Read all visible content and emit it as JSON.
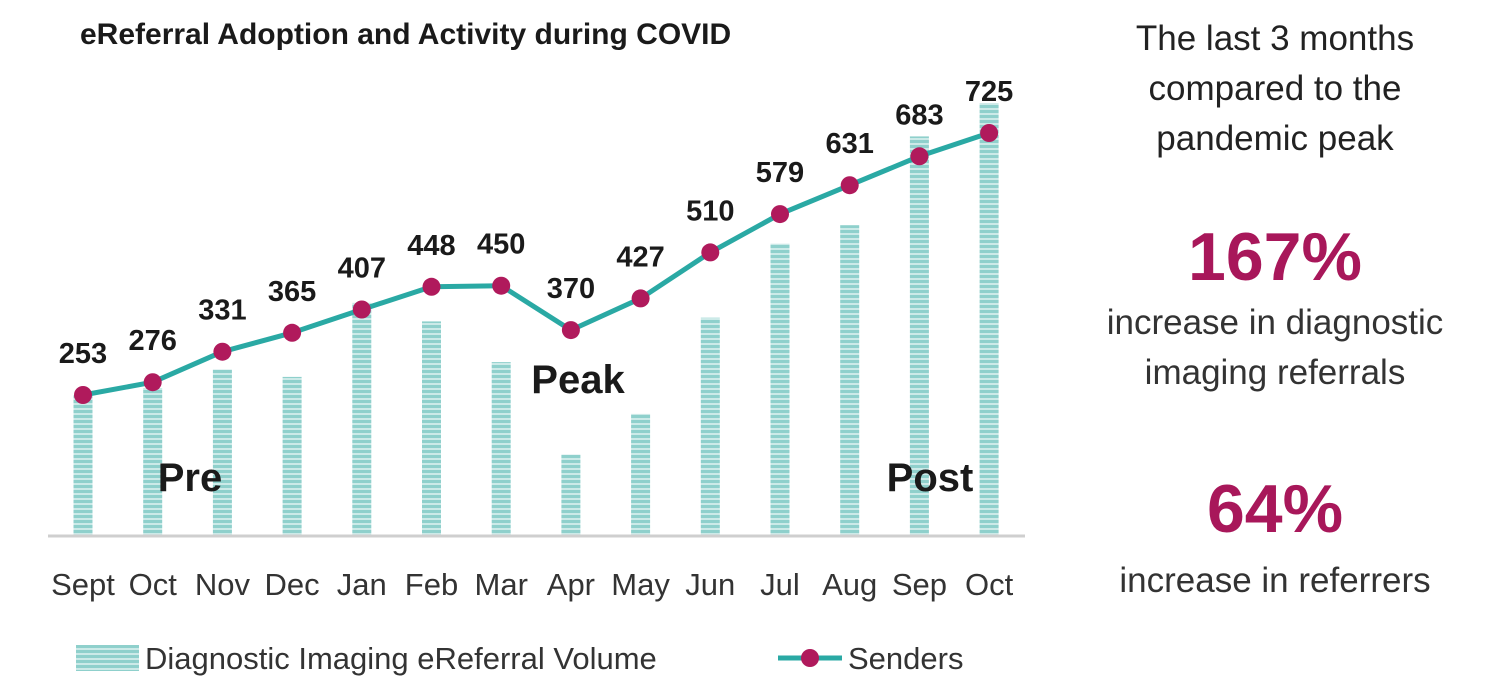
{
  "colors": {
    "bar_fill": "#8fd0cc",
    "bar_stripe": "#ffffff",
    "line": "#2aa9a4",
    "marker": "#b01a5c",
    "highlight": "#a8175a",
    "axis": "#cfcfcf",
    "text": "#1a1a1a"
  },
  "chart_data": {
    "type": "bar",
    "title": "eReferral Adoption and Activity during COVID",
    "categories": [
      "Sept",
      "Oct",
      "Nov",
      "Dec",
      "Jan",
      "Feb",
      "Mar",
      "Apr",
      "May",
      "Jun",
      "Jul",
      "Aug",
      "Sep",
      "Oct"
    ],
    "series": [
      {
        "name": "Diagnostic Imaging eReferral Volume",
        "kind": "bar",
        "values": [
          38,
          40,
          45,
          43,
          63,
          58,
          47,
          22,
          33,
          59,
          79,
          84,
          108,
          117
        ]
      },
      {
        "name": "Senders",
        "kind": "line",
        "values": [
          253,
          276,
          331,
          365,
          407,
          448,
          450,
          370,
          427,
          510,
          579,
          631,
          683,
          725
        ]
      }
    ],
    "phase_annotations": [
      "Pre",
      "Peak",
      "Post"
    ],
    "legend_position": "bottom",
    "grid": false,
    "xlabel": "",
    "ylabel": ""
  },
  "side_panel": {
    "intro": "The last 3 months compared to the pandemic peak",
    "stat1_value": "167%",
    "stat1_label": "increase in diagnostic imaging referrals",
    "stat2_value": "64%",
    "stat2_label": "increase in referrers"
  }
}
